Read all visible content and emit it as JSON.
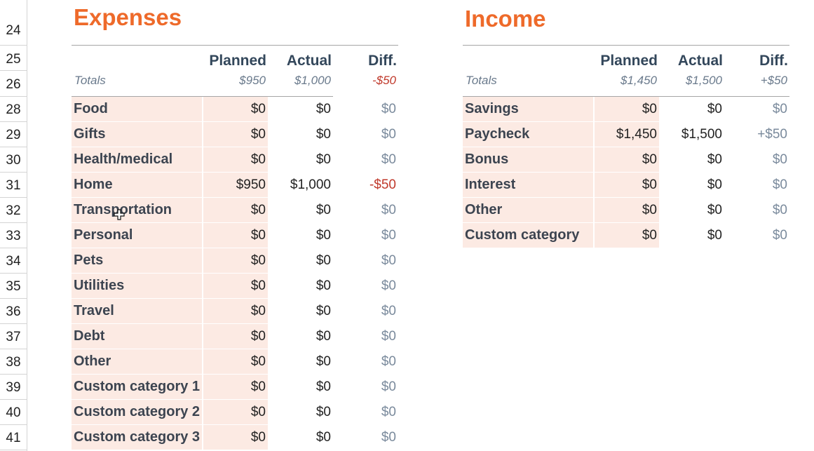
{
  "row_numbers": [
    "24",
    "25",
    "26",
    "28",
    "29",
    "30",
    "31",
    "32",
    "33",
    "34",
    "35",
    "36",
    "37",
    "38",
    "39",
    "40",
    "41"
  ],
  "expenses": {
    "title": "Expenses",
    "headers": {
      "planned": "Planned",
      "actual": "Actual",
      "diff": "Diff."
    },
    "totals": {
      "label": "Totals",
      "planned": "$950",
      "actual": "$1,000",
      "diff": "-$50"
    },
    "rows": [
      {
        "name": "Food",
        "planned": "$0",
        "actual": "$0",
        "diff": "$0"
      },
      {
        "name": "Gifts",
        "planned": "$0",
        "actual": "$0",
        "diff": "$0"
      },
      {
        "name": "Health/medical",
        "planned": "$0",
        "actual": "$0",
        "diff": "$0"
      },
      {
        "name": "Home",
        "planned": "$950",
        "actual": "$1,000",
        "diff": "-$50"
      },
      {
        "name": "Transportation",
        "planned": "$0",
        "actual": "$0",
        "diff": "$0"
      },
      {
        "name": "Personal",
        "planned": "$0",
        "actual": "$0",
        "diff": "$0"
      },
      {
        "name": "Pets",
        "planned": "$0",
        "actual": "$0",
        "diff": "$0"
      },
      {
        "name": "Utilities",
        "planned": "$0",
        "actual": "$0",
        "diff": "$0"
      },
      {
        "name": "Travel",
        "planned": "$0",
        "actual": "$0",
        "diff": "$0"
      },
      {
        "name": "Debt",
        "planned": "$0",
        "actual": "$0",
        "diff": "$0"
      },
      {
        "name": "Other",
        "planned": "$0",
        "actual": "$0",
        "diff": "$0"
      },
      {
        "name": "Custom category 1",
        "planned": "$0",
        "actual": "$0",
        "diff": "$0"
      },
      {
        "name": "Custom category 2",
        "planned": "$0",
        "actual": "$0",
        "diff": "$0"
      },
      {
        "name": "Custom category 3",
        "planned": "$0",
        "actual": "$0",
        "diff": "$0"
      }
    ]
  },
  "income": {
    "title": "Income",
    "headers": {
      "planned": "Planned",
      "actual": "Actual",
      "diff": "Diff."
    },
    "totals": {
      "label": "Totals",
      "planned": "$1,450",
      "actual": "$1,500",
      "diff": "+$50"
    },
    "rows": [
      {
        "name": "Savings",
        "planned": "$0",
        "actual": "$0",
        "diff": "$0"
      },
      {
        "name": "Paycheck",
        "planned": "$1,450",
        "actual": "$1,500",
        "diff": "+$50"
      },
      {
        "name": "Bonus",
        "planned": "$0",
        "actual": "$0",
        "diff": "$0"
      },
      {
        "name": "Interest",
        "planned": "$0",
        "actual": "$0",
        "diff": "$0"
      },
      {
        "name": "Other",
        "planned": "$0",
        "actual": "$0",
        "diff": "$0"
      },
      {
        "name": "Custom category",
        "planned": "$0",
        "actual": "$0",
        "diff": "$0"
      }
    ]
  },
  "colors": {
    "title": "#ee6a2a",
    "header": "#33475b",
    "band": "#fceae3",
    "negative": "#c0392b",
    "muted": "#7a8a9c"
  }
}
